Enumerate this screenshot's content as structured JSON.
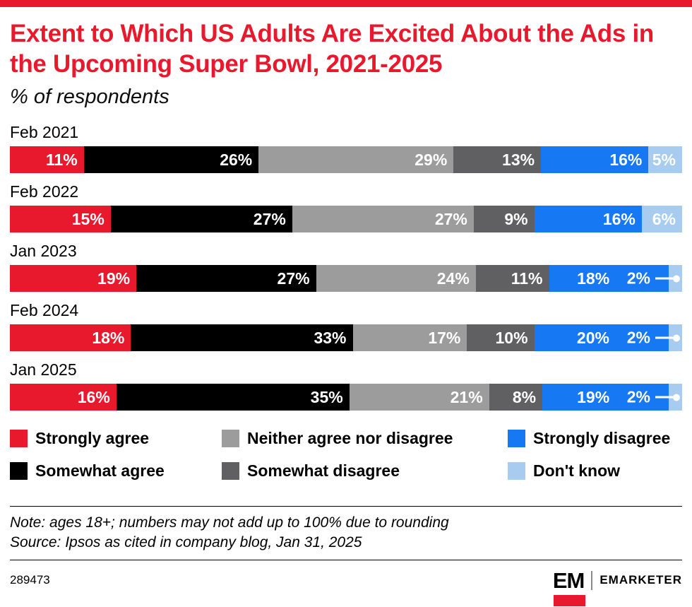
{
  "page": {
    "title": "Extent to Which US Adults Are Excited About the Ads in the Upcoming Super Bowl, 2021-2025",
    "subtitle": "% of respondents",
    "note": "Note: ages 18+; numbers may not add up to 100% due to rounding",
    "source": "Source: Ipsos as cited in company blog, Jan 31, 2025",
    "chart_id": "289473"
  },
  "branding": {
    "logo_em": "EM",
    "logo_name": "EMARKETER",
    "brand_red": "#e8192d"
  },
  "chart_data": {
    "type": "bar",
    "variant": "stacked-horizontal",
    "title": "Extent to Which US Adults Are Excited About the Ads in the Upcoming Super Bowl, 2021-2025",
    "subtitle": "% of respondents",
    "value_suffix": "%",
    "callout_threshold": 2,
    "legend_position": "bottom",
    "categories": [
      "Feb 2021",
      "Feb 2022",
      "Jan 2023",
      "Feb 2024",
      "Jan 2025"
    ],
    "series": [
      {
        "name": "Strongly agree",
        "color": "#e8192d",
        "values": [
          11,
          15,
          19,
          18,
          16
        ]
      },
      {
        "name": "Somewhat agree",
        "color": "#000000",
        "values": [
          26,
          27,
          27,
          33,
          35
        ]
      },
      {
        "name": "Neither agree nor disagree",
        "color": "#9c9c9c",
        "values": [
          29,
          27,
          24,
          17,
          21
        ]
      },
      {
        "name": "Somewhat disagree",
        "color": "#606062",
        "values": [
          13,
          9,
          11,
          10,
          8
        ]
      },
      {
        "name": "Strongly disagree",
        "color": "#1678f2",
        "values": [
          16,
          16,
          18,
          20,
          19
        ]
      },
      {
        "name": "Don't know",
        "color": "#a8ccf0",
        "values": [
          5,
          6,
          2,
          2,
          2
        ]
      }
    ]
  }
}
